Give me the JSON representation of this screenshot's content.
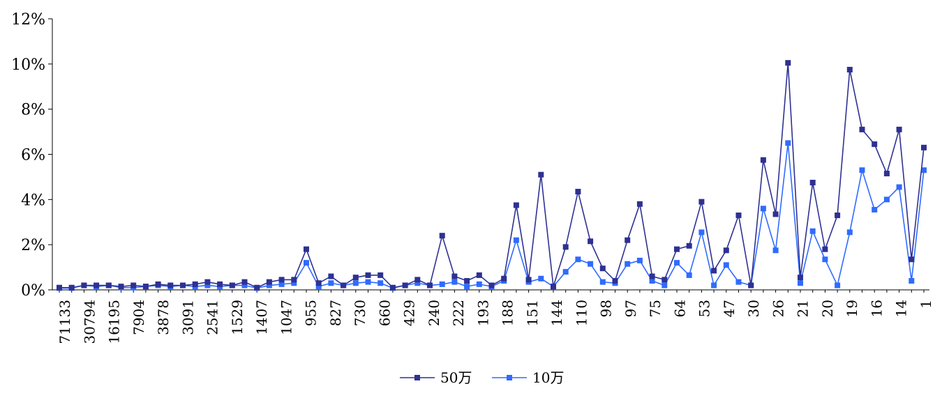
{
  "chart_data": {
    "type": "line",
    "title": "",
    "xlabel": "",
    "ylabel": "",
    "ylim": [
      0,
      12
    ],
    "y_tick_suffix": "%",
    "y_ticks": [
      0,
      2,
      4,
      6,
      8,
      10,
      12
    ],
    "y_tick_labels": [
      "0%",
      "2%",
      "4%",
      "6%",
      "8%",
      "10%",
      "12%"
    ],
    "grid": false,
    "legend_position": "bottom",
    "x_tick_labels": [
      "71133",
      "30794",
      "16195",
      "7904",
      "3878",
      "3091",
      "2541",
      "1529",
      "1407",
      "1047",
      "955",
      "827",
      "730",
      "660",
      "429",
      "240",
      "222",
      "193",
      "188",
      "151",
      "144",
      "110",
      "98",
      "97",
      "75",
      "64",
      "53",
      "47",
      "30",
      "26",
      "21",
      "20",
      "19",
      "16",
      "14",
      "1"
    ],
    "series": [
      {
        "name": "50万",
        "color": "#2e3192",
        "values": [
          0.1,
          0.1,
          0.2,
          0.2,
          0.2,
          0.15,
          0.2,
          0.15,
          0.25,
          0.2,
          0.2,
          0.25,
          0.35,
          0.25,
          0.2,
          0.35,
          0.1,
          0.35,
          0.45,
          0.45,
          1.8,
          0.3,
          0.6,
          0.2,
          0.55,
          0.65,
          0.65,
          0.1,
          0.2,
          0.45,
          0.2,
          2.4,
          0.6,
          0.4,
          0.65,
          0.2,
          0.5,
          3.75,
          0.45,
          5.1,
          0.15,
          1.9,
          4.35,
          2.15,
          0.95,
          0.4,
          2.2,
          3.8,
          0.6,
          0.45,
          1.8,
          1.95,
          3.9,
          0.85,
          1.75,
          3.3,
          0.2,
          5.75,
          3.35,
          10.05,
          0.55,
          4.75,
          1.8,
          3.3,
          9.75,
          7.1,
          6.45,
          5.15,
          7.1,
          1.35,
          6.3
        ]
      },
      {
        "name": "10万",
        "color": "#2f6bff",
        "values": [
          0.08,
          0.08,
          0.2,
          0.15,
          0.2,
          0.1,
          0.1,
          0.15,
          0.2,
          0.15,
          0.2,
          0.15,
          0.2,
          0.15,
          0.2,
          0.2,
          0.08,
          0.2,
          0.25,
          0.3,
          1.2,
          0.15,
          0.3,
          0.2,
          0.3,
          0.35,
          0.3,
          0.08,
          0.2,
          0.3,
          0.2,
          0.25,
          0.35,
          0.15,
          0.25,
          0.15,
          0.4,
          2.2,
          0.35,
          0.5,
          0.15,
          0.8,
          1.35,
          1.15,
          0.35,
          0.3,
          1.15,
          1.3,
          0.4,
          0.2,
          1.2,
          0.65,
          2.55,
          0.2,
          1.1,
          0.35,
          0.2,
          3.6,
          1.75,
          6.5,
          0.3,
          2.6,
          1.35,
          0.2,
          2.55,
          5.3,
          3.55,
          4.0,
          4.55,
          0.4,
          5.3
        ]
      }
    ]
  }
}
